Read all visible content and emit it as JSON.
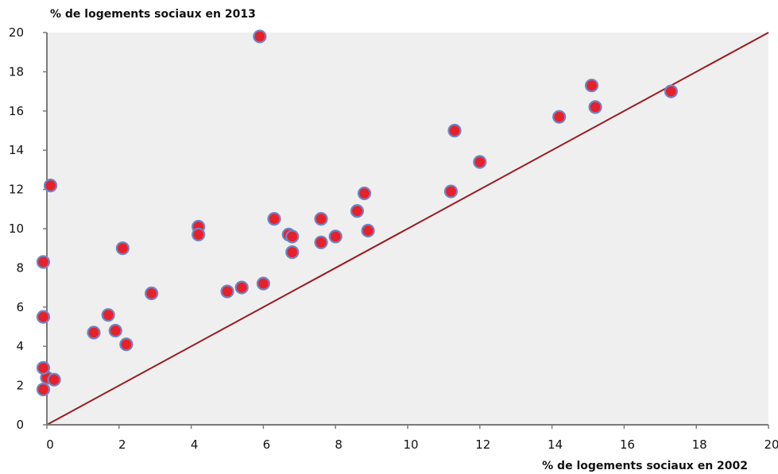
{
  "chart_data": {
    "type": "scatter",
    "title": "",
    "ylabel": "% de logements sociaux en 2013",
    "xlabel": "% de logements sociaux en 2002",
    "xlim": [
      0,
      20
    ],
    "ylim": [
      0,
      20
    ],
    "x_ticks": [
      "0",
      "2",
      "4",
      "6",
      "8",
      "10",
      "12",
      "14",
      "16",
      "18",
      "20"
    ],
    "y_ticks": [
      "0",
      "2",
      "4",
      "6",
      "8",
      "10",
      "12",
      "14",
      "16",
      "18",
      "20"
    ],
    "grid": false,
    "legend": "none",
    "reference_line": {
      "from": [
        0,
        0
      ],
      "to": [
        20,
        20
      ]
    },
    "colors": {
      "plot_background": "#efefef",
      "point_fill": "#e8202a",
      "point_stroke": "#6f86c6",
      "reference_line": "#9b1b22",
      "axis": "#7a7a7a"
    },
    "points": [
      {
        "x": -0.1,
        "y": 1.8
      },
      {
        "x": 0.0,
        "y": 2.4
      },
      {
        "x": 0.2,
        "y": 2.3
      },
      {
        "x": -0.1,
        "y": 2.9
      },
      {
        "x": -0.1,
        "y": 5.5
      },
      {
        "x": -0.1,
        "y": 8.3
      },
      {
        "x": 0.1,
        "y": 12.2
      },
      {
        "x": 1.3,
        "y": 4.7
      },
      {
        "x": 1.7,
        "y": 5.6
      },
      {
        "x": 1.9,
        "y": 4.8
      },
      {
        "x": 2.2,
        "y": 4.1
      },
      {
        "x": 2.1,
        "y": 9.0
      },
      {
        "x": 2.9,
        "y": 6.7
      },
      {
        "x": 4.2,
        "y": 10.1
      },
      {
        "x": 4.2,
        "y": 9.7
      },
      {
        "x": 5.0,
        "y": 6.8
      },
      {
        "x": 5.4,
        "y": 7.0
      },
      {
        "x": 5.9,
        "y": 19.8
      },
      {
        "x": 6.0,
        "y": 7.2
      },
      {
        "x": 6.3,
        "y": 10.5
      },
      {
        "x": 6.7,
        "y": 9.7
      },
      {
        "x": 6.8,
        "y": 9.6
      },
      {
        "x": 6.8,
        "y": 8.8
      },
      {
        "x": 7.6,
        "y": 10.5
      },
      {
        "x": 7.6,
        "y": 9.3
      },
      {
        "x": 8.0,
        "y": 9.6
      },
      {
        "x": 8.6,
        "y": 10.9
      },
      {
        "x": 8.8,
        "y": 11.8
      },
      {
        "x": 8.9,
        "y": 9.9
      },
      {
        "x": 11.2,
        "y": 11.9
      },
      {
        "x": 11.3,
        "y": 15.0
      },
      {
        "x": 12.0,
        "y": 13.4
      },
      {
        "x": 14.2,
        "y": 15.7
      },
      {
        "x": 15.1,
        "y": 17.3
      },
      {
        "x": 15.2,
        "y": 16.2
      },
      {
        "x": 17.3,
        "y": 17.0
      }
    ]
  }
}
